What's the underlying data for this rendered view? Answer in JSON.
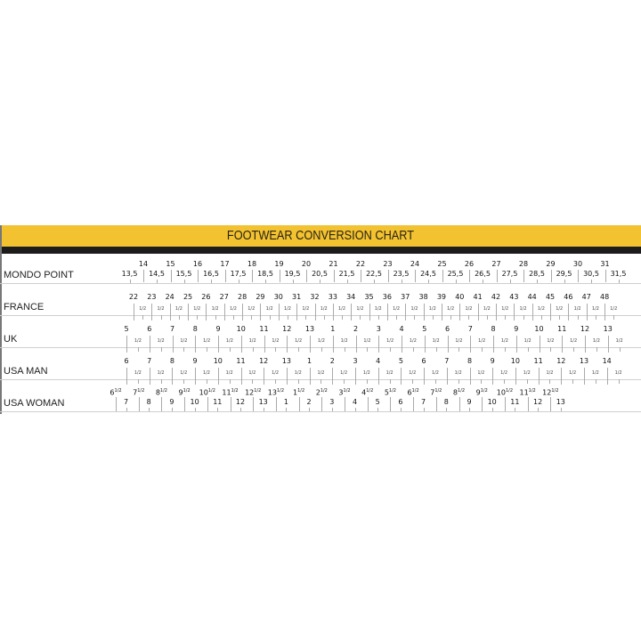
{
  "title": "FOOTWEAR CONVERSION CHART",
  "colors": {
    "band": "#f2c230",
    "bar": "#1c1c1c"
  },
  "rows": [
    {
      "label": "MONDO POINT",
      "major": [
        "14",
        "15",
        "16",
        "17",
        "18",
        "19",
        "20",
        "21",
        "22",
        "23",
        "24",
        "25",
        "26",
        "27",
        "28",
        "29",
        "30",
        "31"
      ],
      "minor": [
        "13,5",
        "14,5",
        "15,5",
        "16,5",
        "17,5",
        "18,5",
        "19,5",
        "20,5",
        "21,5",
        "22,5",
        "23,5",
        "24,5",
        "25,5",
        "26,5",
        "27,5",
        "28,5",
        "29,5",
        "30,5",
        "31,5"
      ]
    },
    {
      "label": "FRANCE",
      "major": [
        "22",
        "23",
        "24",
        "25",
        "26",
        "27",
        "28",
        "29",
        "30",
        "31",
        "32",
        "33",
        "34",
        "35",
        "36",
        "37",
        "38",
        "39",
        "40",
        "41",
        "42",
        "43",
        "44",
        "45",
        "46",
        "47",
        "48"
      ],
      "half": "1/2"
    },
    {
      "label": "UK",
      "major": [
        "5",
        "6",
        "7",
        "8",
        "9",
        "10",
        "11",
        "12",
        "13",
        "1",
        "2",
        "3",
        "4",
        "5",
        "6",
        "7",
        "8",
        "9",
        "10",
        "11",
        "12",
        "13"
      ],
      "half": "1/2"
    },
    {
      "label": "USA MAN",
      "major": [
        "6",
        "7",
        "8",
        "9",
        "10",
        "11",
        "12",
        "13",
        "1",
        "2",
        "3",
        "4",
        "5",
        "6",
        "7",
        "8",
        "9",
        "10",
        "11",
        "12",
        "13",
        "14"
      ],
      "half": "1/2"
    },
    {
      "label": "USA WOMAN",
      "upper": [
        "6",
        "7",
        "8",
        "9",
        "10",
        "11",
        "12",
        "13",
        "1",
        "2",
        "3",
        "4",
        "5",
        "6",
        "7",
        "8",
        "9",
        "10",
        "11",
        "12"
      ],
      "upper_fraction": "1/2",
      "lower": [
        "7",
        "8",
        "9",
        "10",
        "11",
        "12",
        "13",
        "1",
        "2",
        "3",
        "4",
        "5",
        "6",
        "7",
        "8",
        "9",
        "10",
        "11",
        "12",
        "13"
      ]
    }
  ]
}
